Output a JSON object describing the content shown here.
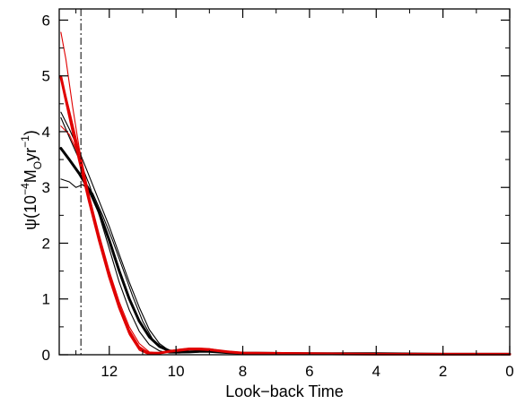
{
  "chart_data": {
    "type": "line",
    "title": "",
    "xlabel": "Look−back Time",
    "ylabel": {
      "prefix": "ψ(10",
      "exp1": "−4",
      "unit_m": "M",
      "unit_sub": "O",
      "unit_yr": "yr",
      "exp2": "−1",
      "suffix": ")"
    },
    "xlim": [
      13.5,
      0
    ],
    "ylim": [
      0,
      6.2
    ],
    "x_ticks": [
      12,
      10,
      8,
      6,
      4,
      2,
      0
    ],
    "x_tick_labels": [
      "12",
      "10",
      "8",
      "6",
      "4",
      "2",
      "0"
    ],
    "y_ticks": [
      0,
      1,
      2,
      3,
      4,
      5,
      6
    ],
    "y_tick_labels": [
      "0",
      "1",
      "2",
      "3",
      "4",
      "5",
      "6"
    ],
    "reference_line": {
      "x": 12.85,
      "style": "dash-dot",
      "color": "#000000"
    },
    "grid": false,
    "legend": "none",
    "series": [
      {
        "color": "#000000",
        "width": 3.0,
        "x": [
          13.45,
          13.2,
          12.9,
          12.6,
          12.3,
          12.0,
          11.7,
          11.4,
          11.1,
          10.8,
          10.5,
          10.2,
          9.9,
          9.6,
          9.3,
          9.0,
          8.5,
          8.0,
          6.0,
          4.0,
          2.0,
          0.0
        ],
        "y": [
          3.7,
          3.5,
          3.25,
          2.95,
          2.55,
          2.05,
          1.5,
          1.0,
          0.6,
          0.32,
          0.15,
          0.07,
          0.05,
          0.05,
          0.06,
          0.06,
          0.04,
          0.03,
          0.02,
          0.02,
          0.01,
          0.01
        ]
      },
      {
        "color": "#000000",
        "width": 1.1,
        "x": [
          13.45,
          13.2,
          12.9,
          12.6,
          12.3,
          12.0,
          11.7,
          11.4,
          11.1,
          10.8,
          10.5,
          10.2,
          9.9,
          9.6,
          9.3,
          9.0,
          8.5,
          8.0,
          6.0,
          4.0,
          2.0,
          0.0
        ],
        "y": [
          4.35,
          4.05,
          3.65,
          3.2,
          2.75,
          2.3,
          1.8,
          1.3,
          0.85,
          0.45,
          0.2,
          0.07,
          0.04,
          0.04,
          0.05,
          0.05,
          0.04,
          0.03,
          0.02,
          0.02,
          0.01,
          0.01
        ]
      },
      {
        "color": "#000000",
        "width": 1.1,
        "x": [
          13.45,
          13.2,
          13.0,
          12.8,
          12.5,
          12.2,
          11.9,
          11.6,
          11.3,
          11.0,
          10.7,
          10.4,
          10.1,
          9.8,
          9.5,
          9.2,
          9.0,
          8.5,
          8.0,
          6.0,
          4.0,
          2.0,
          0.0
        ],
        "y": [
          3.15,
          3.1,
          3.0,
          3.05,
          2.9,
          2.5,
          2.05,
          1.55,
          1.05,
          0.6,
          0.28,
          0.12,
          0.06,
          0.05,
          0.06,
          0.07,
          0.06,
          0.05,
          0.03,
          0.02,
          0.02,
          0.01,
          0.01
        ]
      },
      {
        "color": "#000000",
        "width": 1.1,
        "x": [
          13.45,
          13.2,
          12.9,
          12.6,
          12.3,
          12.0,
          11.7,
          11.4,
          11.1,
          10.8,
          10.5,
          10.2,
          9.9,
          9.6,
          9.3,
          9.0,
          8.5,
          8.0,
          6.0,
          4.0,
          2.0,
          0.0
        ],
        "y": [
          4.25,
          3.9,
          3.5,
          3.05,
          2.5,
          1.9,
          1.3,
          0.8,
          0.42,
          0.18,
          0.07,
          0.03,
          0.03,
          0.04,
          0.05,
          0.05,
          0.04,
          0.03,
          0.02,
          0.02,
          0.01,
          0.01
        ]
      },
      {
        "color": "#e00000",
        "width": 3.0,
        "x": [
          13.45,
          13.2,
          12.9,
          12.6,
          12.3,
          12.0,
          11.7,
          11.4,
          11.1,
          10.8,
          10.5,
          10.2,
          9.9,
          9.6,
          9.3,
          9.0,
          8.7,
          8.4,
          8.0,
          6.0,
          4.0,
          2.0,
          0.0
        ],
        "y": [
          4.98,
          4.3,
          3.5,
          2.75,
          2.05,
          1.4,
          0.85,
          0.4,
          0.12,
          0.02,
          0.03,
          0.06,
          0.08,
          0.1,
          0.1,
          0.09,
          0.07,
          0.05,
          0.03,
          0.02,
          0.01,
          0.01,
          0.01
        ]
      },
      {
        "color": "#e00000",
        "width": 1.1,
        "x": [
          13.45,
          13.3,
          13.1,
          12.9,
          12.6,
          12.3,
          12.0,
          11.7,
          11.4,
          11.1,
          10.8,
          10.5,
          10.2,
          9.9,
          9.6,
          9.3,
          9.0,
          8.7,
          8.4,
          8.0,
          6.0,
          4.0,
          2.0,
          0.0
        ],
        "y": [
          5.78,
          5.3,
          4.45,
          3.7,
          2.85,
          2.15,
          1.5,
          0.95,
          0.5,
          0.2,
          0.05,
          0.04,
          0.07,
          0.1,
          0.12,
          0.12,
          0.11,
          0.08,
          0.05,
          0.03,
          0.02,
          0.01,
          0.01,
          0.01
        ]
      },
      {
        "color": "#e00000",
        "width": 1.1,
        "x": [
          13.45,
          13.2,
          12.9,
          12.6,
          12.3,
          12.0,
          11.7,
          11.4,
          11.1,
          10.8,
          10.5,
          10.2,
          9.9,
          9.6,
          9.3,
          9.0,
          8.7,
          8.4,
          8.0,
          6.0,
          4.0,
          2.0,
          0.0
        ],
        "y": [
          4.1,
          3.95,
          3.55,
          2.85,
          2.1,
          1.45,
          0.9,
          0.45,
          0.15,
          0.03,
          0.02,
          0.05,
          0.07,
          0.09,
          0.09,
          0.08,
          0.06,
          0.04,
          0.03,
          0.02,
          0.01,
          0.01,
          0.01
        ]
      },
      {
        "color": "#e00000",
        "width": 1.1,
        "x": [
          13.45,
          13.2,
          12.9,
          12.6,
          12.3,
          12.0,
          11.7,
          11.4,
          11.1,
          10.8,
          10.5,
          10.2,
          9.9,
          9.6,
          9.3,
          9.0,
          8.7,
          8.4,
          8.0,
          6.0,
          4.0,
          2.0,
          0.0
        ],
        "y": [
          5.0,
          4.4,
          3.65,
          2.85,
          2.1,
          1.42,
          0.82,
          0.36,
          0.08,
          0.0,
          0.02,
          0.05,
          0.07,
          0.09,
          0.09,
          0.08,
          0.06,
          0.04,
          0.03,
          0.02,
          0.01,
          0.01,
          0.01
        ]
      }
    ]
  }
}
